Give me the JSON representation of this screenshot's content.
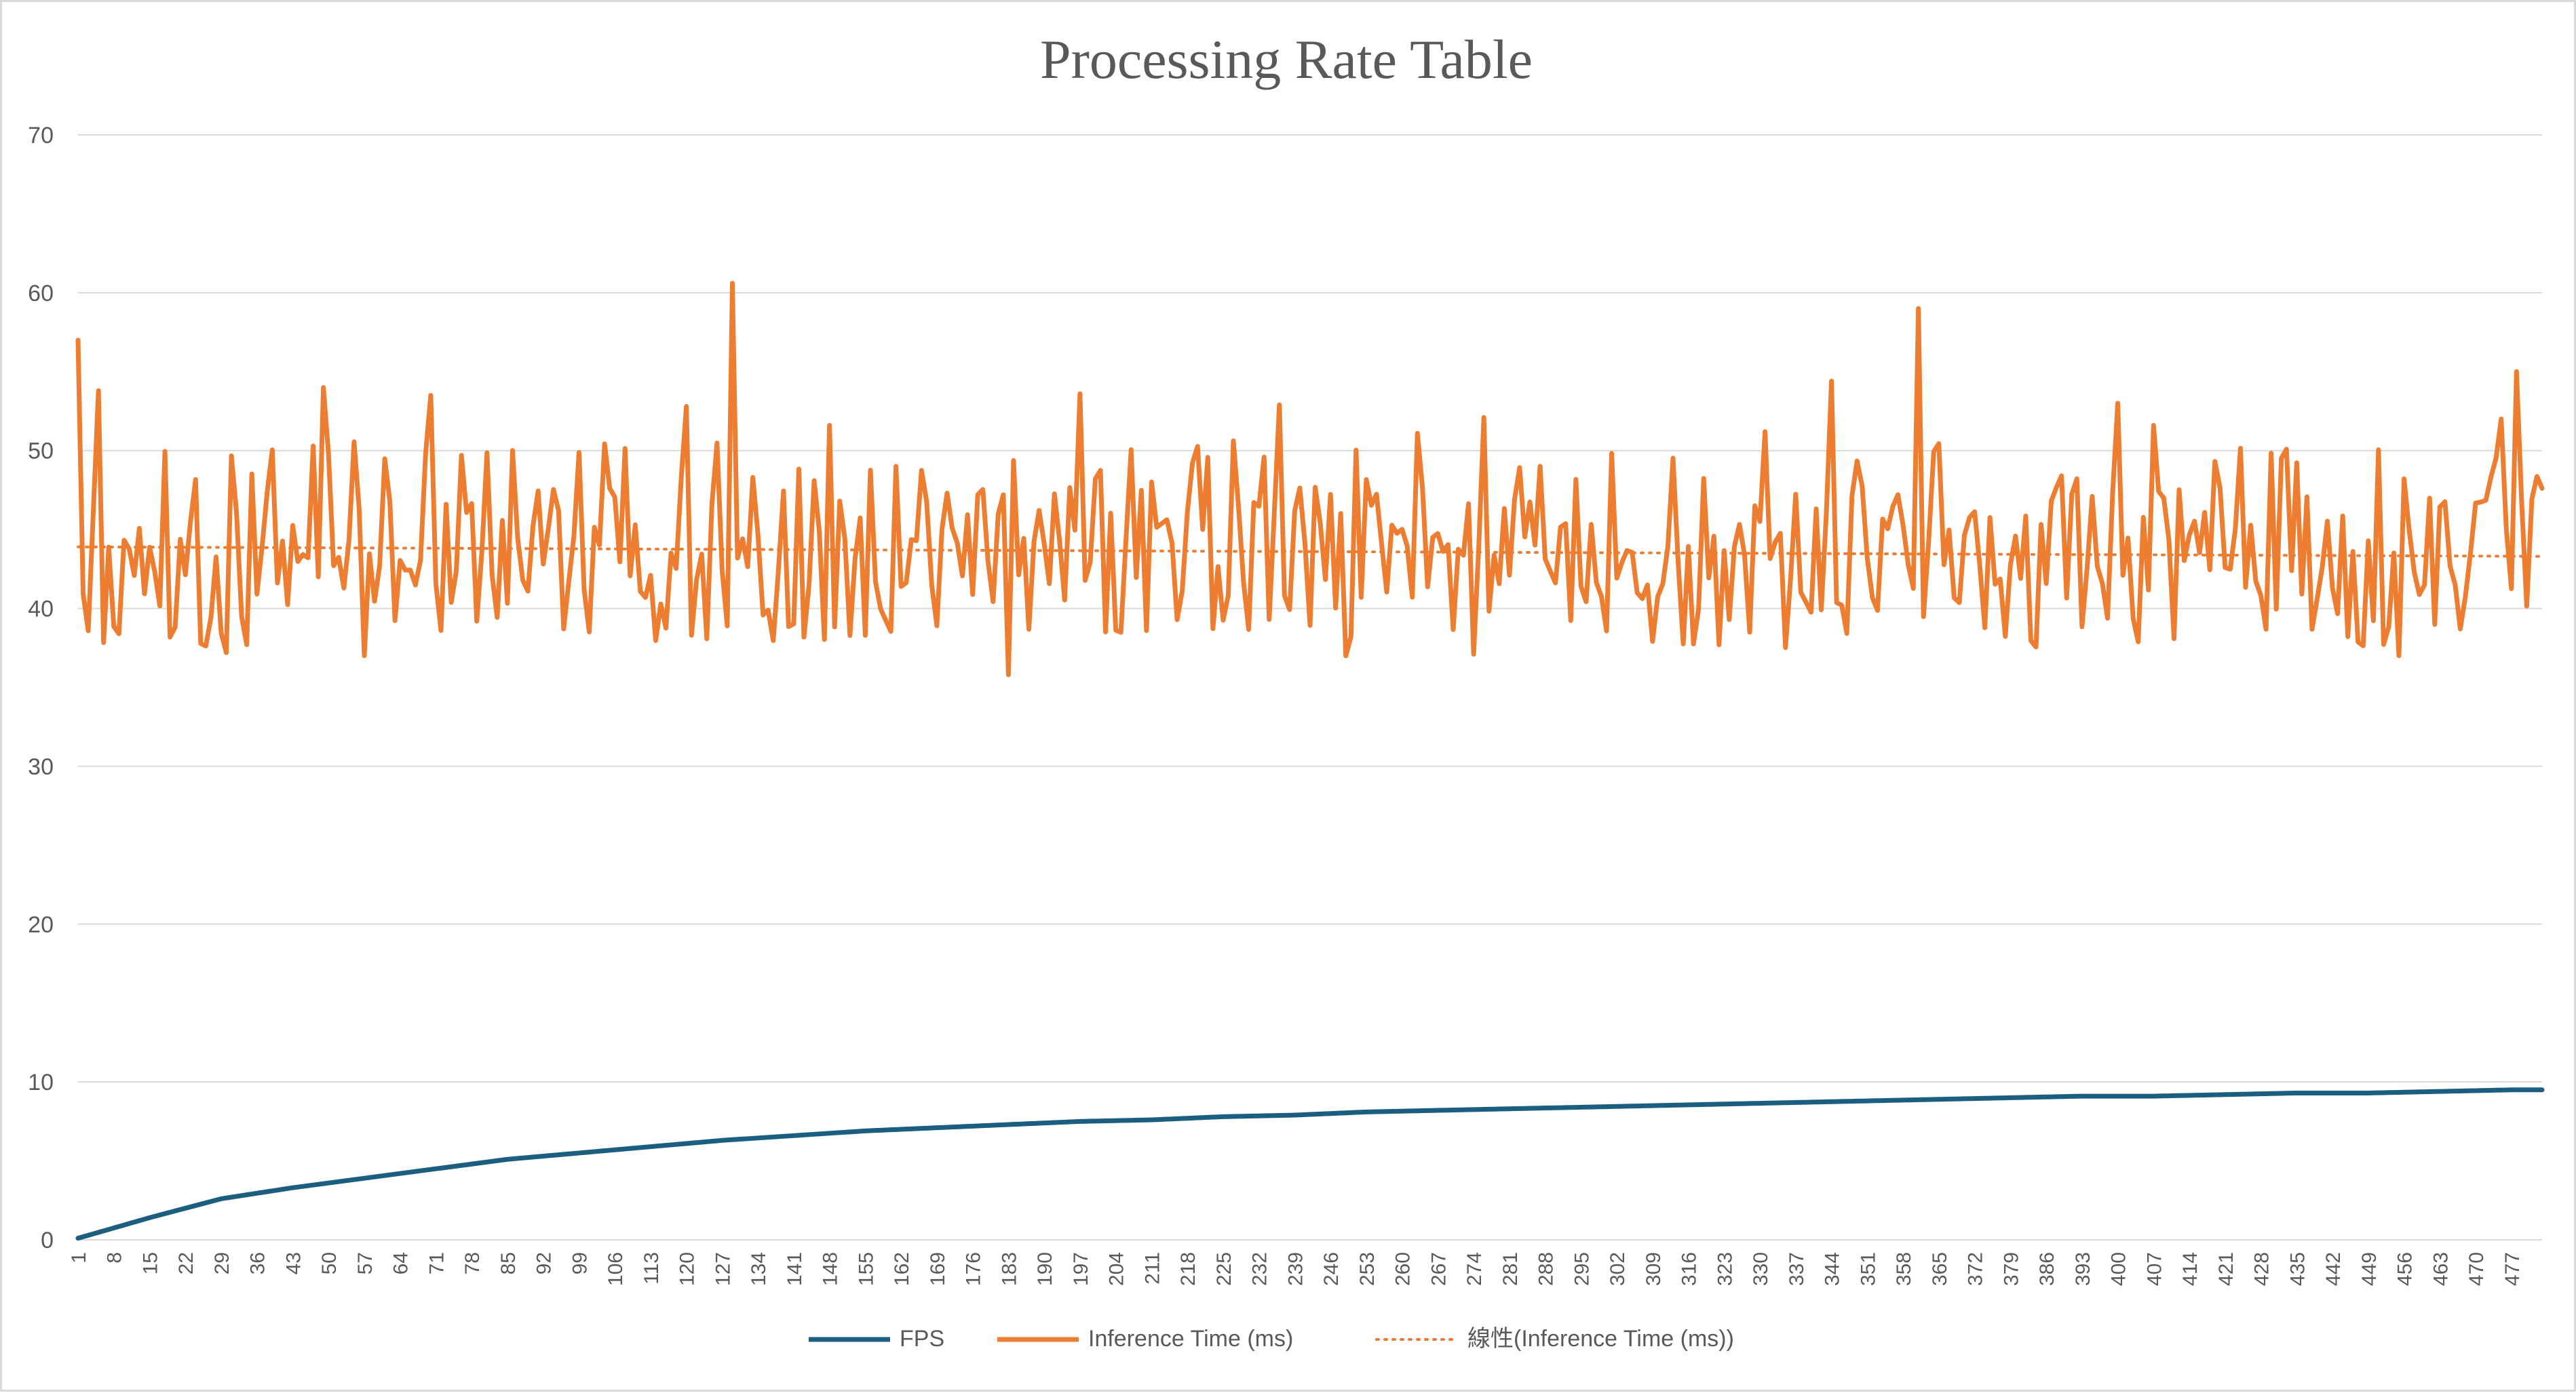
{
  "chart_data": {
    "type": "line",
    "title": "Processing Rate Table",
    "xlabel": "",
    "ylabel": "",
    "x_range": [
      1,
      483
    ],
    "x_tick_start": 1,
    "x_tick_step": 7,
    "ylim": [
      0,
      70
    ],
    "y_ticks": [
      0,
      10,
      20,
      30,
      40,
      50,
      60,
      70
    ],
    "grid": "horizontal",
    "legend": "bottom",
    "series": [
      {
        "name": "FPS",
        "color": "#1b5e80",
        "style": "solid",
        "model": "saturating",
        "points": [
          [
            1,
            0.1
          ],
          [
            15,
            1.4
          ],
          [
            29,
            2.6
          ],
          [
            43,
            3.3
          ],
          [
            57,
            3.9
          ],
          [
            71,
            4.5
          ],
          [
            85,
            5.1
          ],
          [
            99,
            5.5
          ],
          [
            113,
            5.9
          ],
          [
            127,
            6.3
          ],
          [
            141,
            6.6
          ],
          [
            155,
            6.9
          ],
          [
            169,
            7.1
          ],
          [
            183,
            7.3
          ],
          [
            197,
            7.5
          ],
          [
            211,
            7.6
          ],
          [
            225,
            7.8
          ],
          [
            239,
            7.9
          ],
          [
            253,
            8.1
          ],
          [
            267,
            8.2
          ],
          [
            281,
            8.3
          ],
          [
            295,
            8.4
          ],
          [
            309,
            8.5
          ],
          [
            323,
            8.6
          ],
          [
            337,
            8.7
          ],
          [
            351,
            8.8
          ],
          [
            365,
            8.9
          ],
          [
            379,
            9.0
          ],
          [
            393,
            9.1
          ],
          [
            407,
            9.1
          ],
          [
            421,
            9.2
          ],
          [
            435,
            9.3
          ],
          [
            449,
            9.3
          ],
          [
            463,
            9.4
          ],
          [
            477,
            9.5
          ],
          [
            483,
            9.5
          ]
        ]
      },
      {
        "name": "Inference Time (ms)",
        "color": "#ed7d31",
        "style": "solid",
        "model": "noisy",
        "mean": 43.7,
        "spikes": [
          [
            1,
            57.0
          ],
          [
            5,
            53.8
          ],
          [
            49,
            54.0
          ],
          [
            70,
            53.5
          ],
          [
            120,
            52.8
          ],
          [
            129,
            60.6
          ],
          [
            148,
            51.6
          ],
          [
            197,
            53.6
          ],
          [
            236,
            52.9
          ],
          [
            263,
            51.1
          ],
          [
            276,
            52.1
          ],
          [
            331,
            51.2
          ],
          [
            344,
            54.4
          ],
          [
            361,
            59.0
          ],
          [
            400,
            53.0
          ],
          [
            407,
            51.6
          ],
          [
            475,
            52.0
          ],
          [
            478,
            55.0
          ],
          [
            183,
            35.8
          ],
          [
            57,
            37.0
          ],
          [
            30,
            37.2
          ],
          [
            455,
            37.0
          ],
          [
            274,
            37.1
          ],
          [
            249,
            37.0
          ]
        ]
      },
      {
        "name": "線性(Inference Time (ms))",
        "color": "#ed7d31",
        "style": "dotted",
        "model": "linear",
        "points": [
          [
            1,
            43.9
          ],
          [
            483,
            43.3
          ]
        ]
      }
    ]
  }
}
